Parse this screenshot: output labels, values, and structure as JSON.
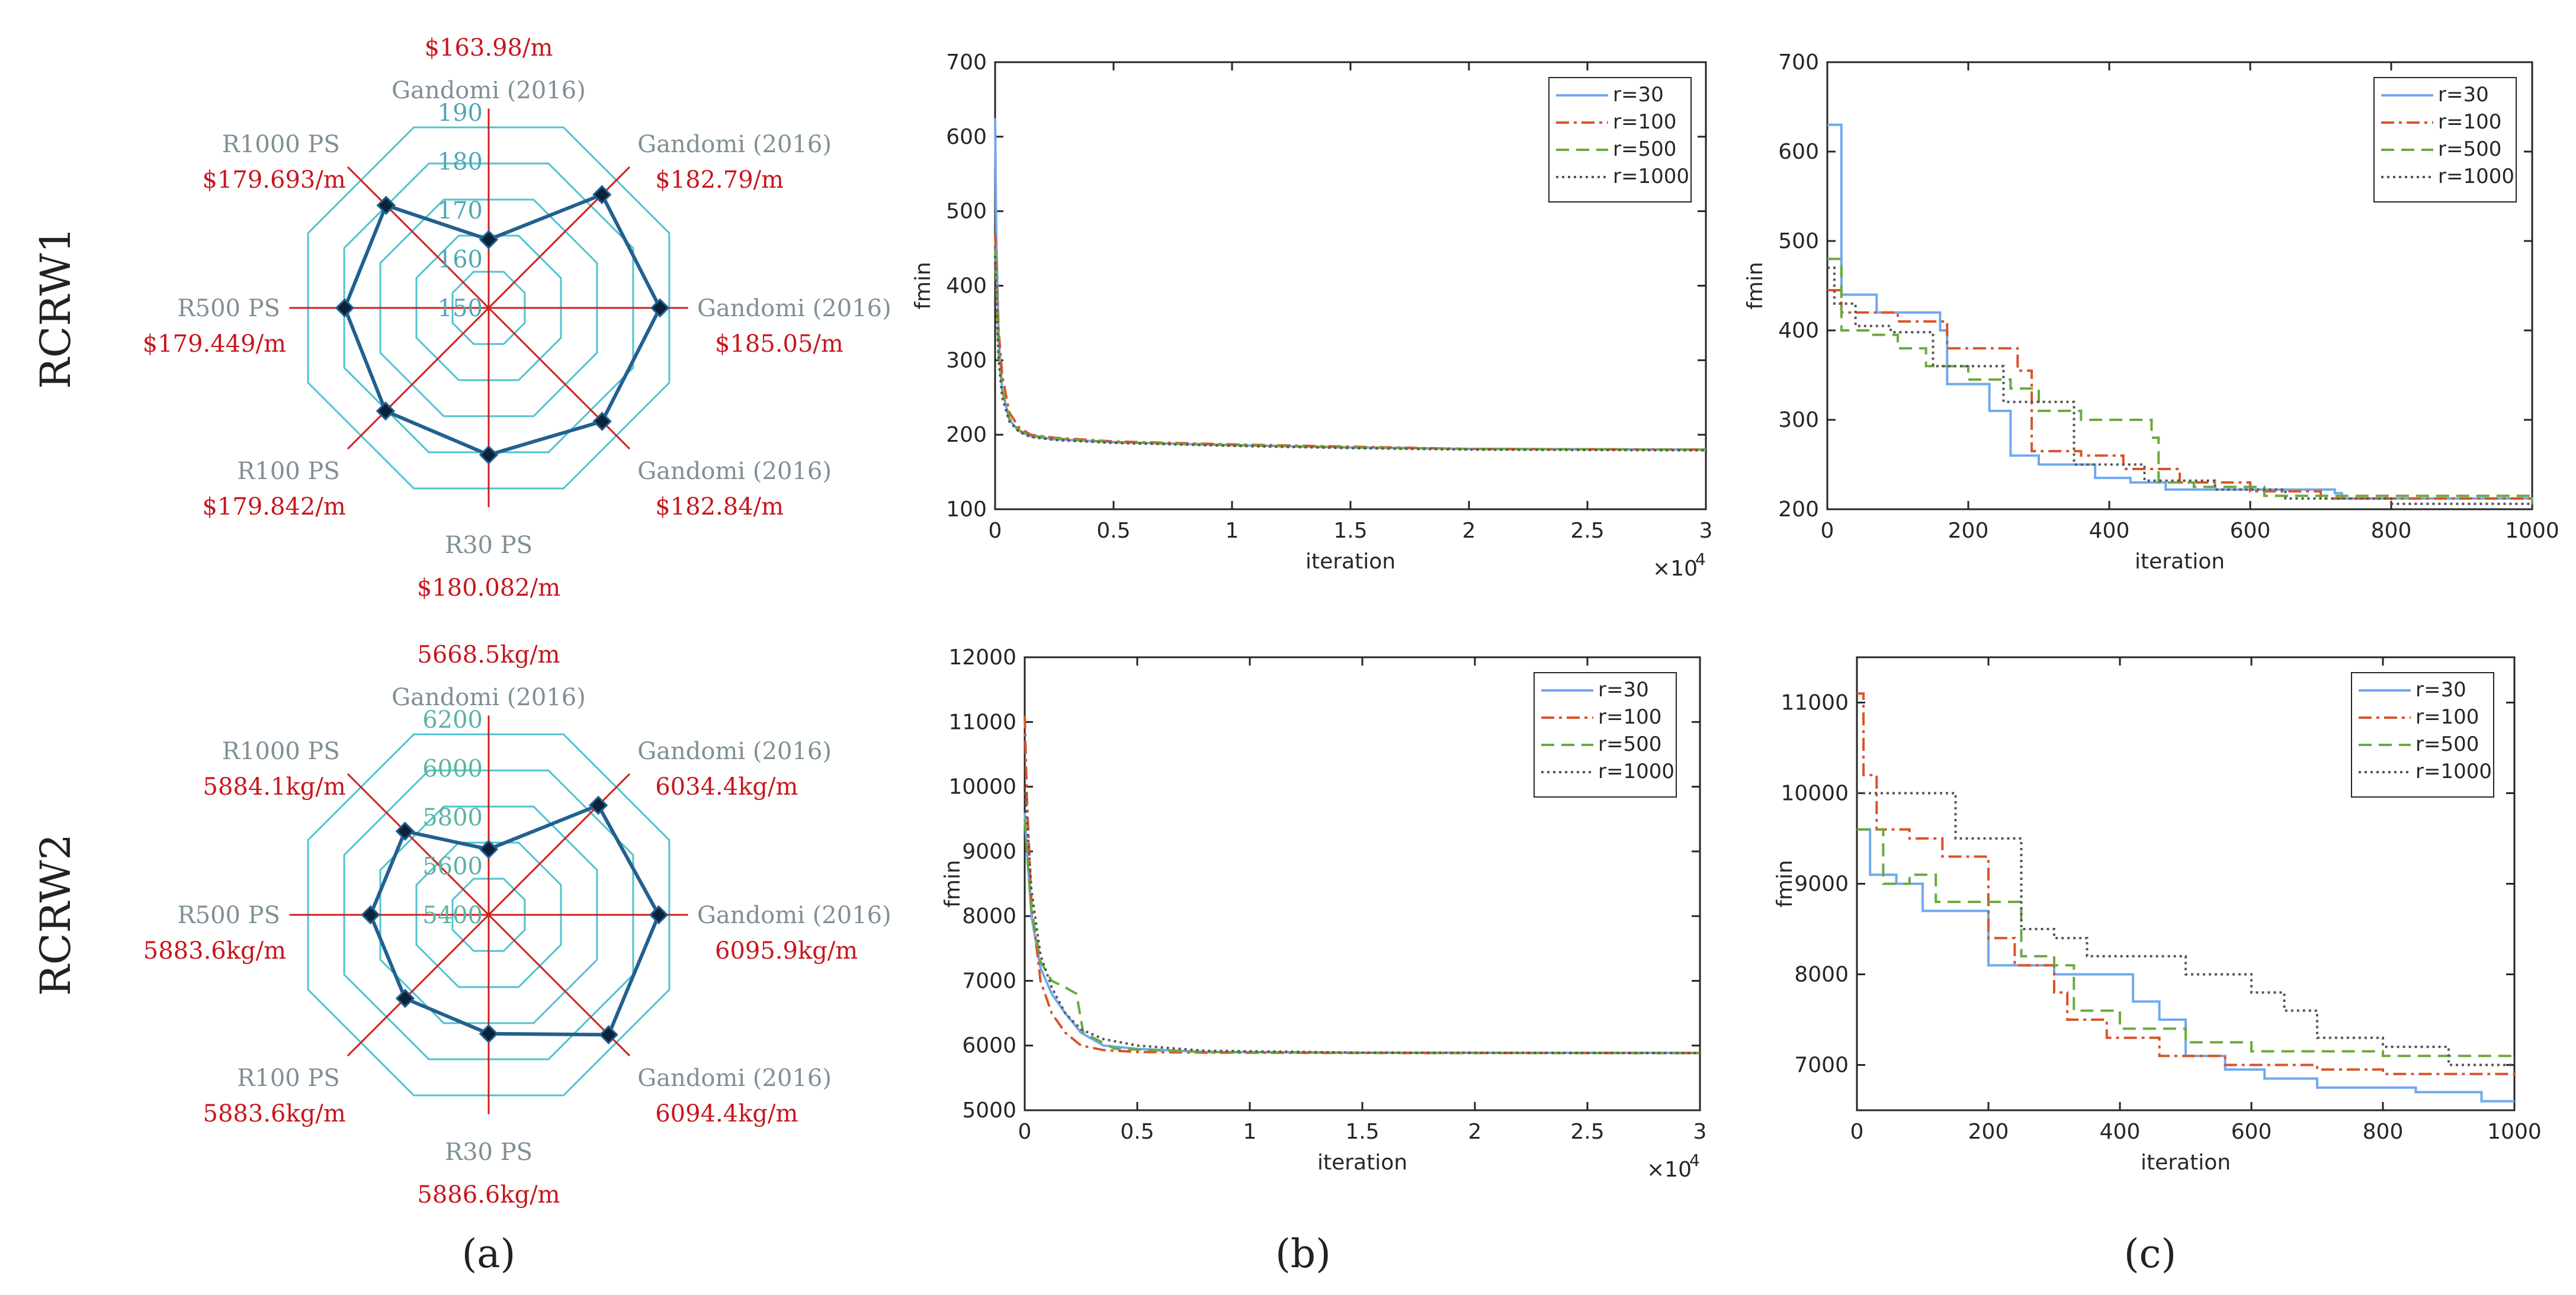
{
  "row_labels": [
    "RCRW1",
    "RCRW2"
  ],
  "panel_labels": [
    "(a)",
    "(b)",
    "(c)"
  ],
  "colors": {
    "spoke": "#d11f1f",
    "grid": "#4fc3cf",
    "poly": "#22608f",
    "label_gray": "#7f8f96",
    "value_red": "#c8161d",
    "tick_cyan": "#4fa8b5",
    "tick_green": "#5ab4a0",
    "r30": "#6fa8f0",
    "r100": "#d9532b",
    "r500": "#6aaa3c",
    "r1000": "#555555"
  },
  "chart_data": [
    {
      "type": "radar",
      "id": "a1",
      "axes": [
        "Gandomi (2016)",
        "Gandomi (2016)",
        "Gandomi (2016)",
        "Gandomi (2016)",
        "R30 PS",
        "R100 PS",
        "R500 PS",
        "R1000 PS"
      ],
      "value_labels": [
        "$163.98/m",
        "$182.79/m",
        "$185.05/m",
        "$182.84/m",
        "$180.082/m",
        "$179.842/m",
        "$179.449/m",
        "$179.693/m"
      ],
      "values": [
        163.98,
        182.79,
        185.05,
        182.84,
        180.082,
        179.842,
        179.449,
        179.693
      ],
      "ticks": [
        "150",
        "160",
        "170",
        "180",
        "190"
      ],
      "range": [
        150,
        190
      ]
    },
    {
      "type": "line",
      "id": "b1",
      "ylabel": "fmin",
      "xlabel": "iteration",
      "xlim": [
        0,
        30000
      ],
      "ylim": [
        100,
        700
      ],
      "xtick_labels": [
        "0",
        "0.5",
        "1",
        "1.5",
        "2",
        "2.5",
        "3"
      ],
      "ytick_labels": [
        "100",
        "200",
        "300",
        "400",
        "500",
        "600",
        "700"
      ],
      "exponent_base": "×10",
      "exponent_power": "4",
      "legend": [
        "r=30",
        "r=100",
        "r=500",
        "r=1000"
      ],
      "series": [
        {
          "name": "r=30",
          "x": [
            0,
            50,
            150,
            300,
            600,
            1000,
            1500,
            2500,
            5000,
            10000,
            15000,
            20000,
            30000
          ],
          "values": [
            625,
            470,
            330,
            260,
            220,
            205,
            198,
            194,
            190,
            186,
            183,
            181,
            180
          ]
        },
        {
          "name": "r=100",
          "x": [
            0,
            50,
            150,
            300,
            600,
            1000,
            1500,
            2500,
            5000,
            10000,
            15000,
            20000,
            30000
          ],
          "values": [
            470,
            420,
            340,
            280,
            230,
            210,
            200,
            196,
            191,
            187,
            184,
            181,
            180
          ]
        },
        {
          "name": "r=500",
          "x": [
            0,
            50,
            150,
            300,
            600,
            1000,
            1500,
            2500,
            5000,
            10000,
            15000,
            20000,
            30000
          ],
          "values": [
            450,
            400,
            310,
            260,
            222,
            206,
            199,
            195,
            190,
            186,
            183,
            181,
            180
          ]
        },
        {
          "name": "r=1000",
          "x": [
            0,
            50,
            150,
            300,
            600,
            1000,
            1500,
            2500,
            5000,
            10000,
            15000,
            20000,
            30000
          ],
          "values": [
            440,
            380,
            300,
            250,
            218,
            204,
            197,
            193,
            189,
            185,
            182,
            180,
            179
          ]
        }
      ]
    },
    {
      "type": "line",
      "id": "c1",
      "ylabel": "fmin",
      "xlabel": "iteration",
      "xlim": [
        0,
        1000
      ],
      "ylim": [
        200,
        700
      ],
      "xtick_labels": [
        "0",
        "200",
        "400",
        "600",
        "800",
        "1000"
      ],
      "ytick_labels": [
        "200",
        "300",
        "400",
        "500",
        "600",
        "700"
      ],
      "legend": [
        "r=30",
        "r=100",
        "r=500",
        "r=1000"
      ],
      "series": [
        {
          "name": "r=30",
          "x": [
            0,
            10,
            20,
            70,
            160,
            170,
            230,
            260,
            300,
            380,
            430,
            480,
            720,
            730,
            1000
          ],
          "values": [
            630,
            630,
            440,
            420,
            400,
            340,
            310,
            260,
            250,
            235,
            230,
            222,
            218,
            212,
            205
          ]
        },
        {
          "name": "r=100",
          "x": [
            0,
            20,
            50,
            100,
            170,
            270,
            290,
            360,
            420,
            500,
            600,
            700,
            1000
          ],
          "values": [
            445,
            420,
            420,
            410,
            380,
            355,
            265,
            260,
            245,
            230,
            220,
            212,
            208
          ]
        },
        {
          "name": "r=500",
          "x": [
            0,
            20,
            60,
            100,
            140,
            200,
            260,
            300,
            360,
            460,
            470,
            520,
            620,
            1000
          ],
          "values": [
            480,
            400,
            395,
            380,
            360,
            345,
            335,
            310,
            300,
            280,
            230,
            225,
            215,
            205
          ]
        },
        {
          "name": "r=1000",
          "x": [
            0,
            10,
            40,
            90,
            150,
            250,
            350,
            450,
            550,
            650,
            800,
            1000
          ],
          "values": [
            470,
            430,
            405,
            398,
            360,
            320,
            250,
            232,
            222,
            212,
            206,
            203
          ]
        }
      ]
    },
    {
      "type": "radar",
      "id": "a2",
      "axes": [
        "Gandomi (2016)",
        "Gandomi (2016)",
        "Gandomi (2016)",
        "Gandomi (2016)",
        "R30 PS",
        "R100 PS",
        "R500 PS",
        "R1000 PS"
      ],
      "value_labels": [
        "5668.5kg/m",
        "6034.4kg/m",
        "6095.9kg/m",
        "6094.4kg/m",
        "5886.6kg/m",
        "5883.6kg/m",
        "5883.6kg/m",
        "5884.1kg/m"
      ],
      "values": [
        5668.5,
        6034.4,
        6095.9,
        6094.4,
        5886.6,
        5883.6,
        5883.6,
        5884.1
      ],
      "ticks": [
        "5400",
        "5600",
        "5800",
        "6000",
        "6200"
      ],
      "range": [
        5400,
        6200
      ]
    },
    {
      "type": "line",
      "id": "b2",
      "ylabel": "fmin",
      "xlabel": "iteration",
      "xlim": [
        0,
        30000
      ],
      "ylim": [
        5000,
        12000
      ],
      "xtick_labels": [
        "0",
        "0.5",
        "1",
        "1.5",
        "2",
        "2.5",
        "3"
      ],
      "ytick_labels": [
        "5000",
        "6000",
        "7000",
        "8000",
        "9000",
        "10000",
        "11000",
        "12000"
      ],
      "exponent_base": "×10",
      "exponent_power": "4",
      "legend": [
        "r=30",
        "r=100",
        "r=500",
        "r=1000"
      ],
      "series": [
        {
          "name": "r=30",
          "x": [
            0,
            100,
            300,
            700,
            1200,
            1800,
            2500,
            3500,
            5000,
            8000,
            15000,
            30000
          ],
          "values": [
            9600,
            9000,
            8000,
            7200,
            6800,
            6500,
            6200,
            6000,
            5950,
            5900,
            5890,
            5887
          ]
        },
        {
          "name": "r=100",
          "x": [
            0,
            100,
            300,
            700,
            1200,
            1800,
            2500,
            3500,
            5000,
            8000,
            15000,
            30000
          ],
          "values": [
            11100,
            9800,
            8200,
            7000,
            6500,
            6200,
            6000,
            5930,
            5900,
            5890,
            5885,
            5884
          ]
        },
        {
          "name": "r=500",
          "x": [
            0,
            100,
            300,
            700,
            1200,
            1800,
            2300,
            2600,
            4000,
            8000,
            15000,
            30000
          ],
          "values": [
            9500,
            9000,
            8100,
            7300,
            7000,
            6900,
            6800,
            6200,
            5950,
            5900,
            5888,
            5884
          ]
        },
        {
          "name": "r=1000",
          "x": [
            0,
            100,
            300,
            700,
            1200,
            1800,
            2500,
            3500,
            5000,
            8000,
            15000,
            30000
          ],
          "values": [
            10000,
            9500,
            8400,
            7400,
            6900,
            6500,
            6250,
            6100,
            6000,
            5920,
            5890,
            5884
          ]
        }
      ]
    },
    {
      "type": "line",
      "id": "c2",
      "ylabel": "fmin",
      "xlabel": "iteration",
      "xlim": [
        0,
        1000
      ],
      "ylim": [
        6500,
        11500
      ],
      "xtick_labels": [
        "0",
        "200",
        "400",
        "600",
        "800",
        "1000"
      ],
      "ytick_labels": [
        "7000",
        "8000",
        "9000",
        "10000",
        "11000"
      ],
      "legend": [
        "r=30",
        "r=100",
        "r=500",
        "r=1000"
      ],
      "series": [
        {
          "name": "r=30",
          "x": [
            0,
            20,
            60,
            100,
            150,
            200,
            300,
            420,
            460,
            500,
            560,
            620,
            700,
            850,
            950,
            1000
          ],
          "values": [
            9600,
            9100,
            9000,
            8700,
            8700,
            8100,
            8000,
            7700,
            7500,
            7100,
            6950,
            6850,
            6750,
            6700,
            6600,
            6600
          ]
        },
        {
          "name": "r=100",
          "x": [
            0,
            10,
            30,
            80,
            130,
            200,
            240,
            300,
            320,
            380,
            460,
            560,
            700,
            800,
            1000
          ],
          "values": [
            11100,
            10200,
            9600,
            9500,
            9300,
            8400,
            8100,
            7800,
            7500,
            7300,
            7100,
            7000,
            6950,
            6900,
            6850
          ]
        },
        {
          "name": "r=500",
          "x": [
            0,
            40,
            80,
            120,
            200,
            250,
            300,
            330,
            400,
            500,
            600,
            800,
            1000
          ],
          "values": [
            9600,
            9000,
            9100,
            8800,
            8800,
            8200,
            8100,
            7600,
            7400,
            7250,
            7150,
            7100,
            7050
          ]
        },
        {
          "name": "r=1000",
          "x": [
            0,
            10,
            50,
            150,
            250,
            300,
            350,
            500,
            600,
            650,
            700,
            800,
            900,
            1000
          ],
          "values": [
            10000,
            10000,
            10000,
            9500,
            8500,
            8400,
            8200,
            8000,
            7800,
            7600,
            7300,
            7200,
            7000,
            7000
          ]
        }
      ]
    }
  ]
}
